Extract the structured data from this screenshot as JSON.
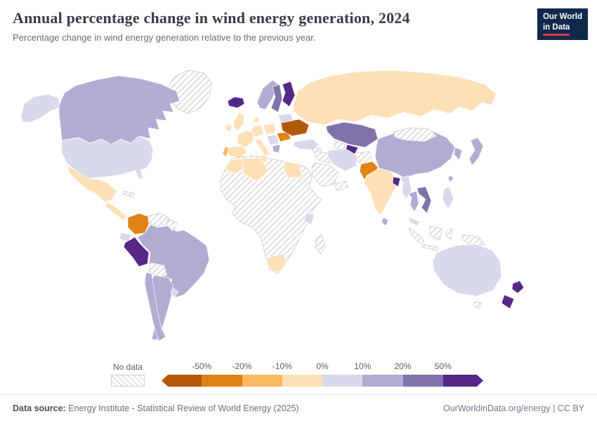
{
  "header": {
    "title": "Annual percentage change in wind energy generation, 2024",
    "subtitle": "Percentage change in wind energy generation relative to the previous year.",
    "logo": {
      "line1": "Our World",
      "line2": "in Data"
    }
  },
  "legend": {
    "no_data_label": "No data",
    "tick_labels": [
      "-50%",
      "-20%",
      "-10%",
      "0%",
      "10%",
      "20%",
      "50%"
    ],
    "bin_colors": [
      "#b35806",
      "#e08214",
      "#fdb863",
      "#fee0b6",
      "#d8daeb",
      "#b2abd2",
      "#8073ac",
      "#542788"
    ],
    "no_data_border": "#c9c9c9",
    "country_border": "#ffffff"
  },
  "footer": {
    "source_label": "Data source:",
    "source_text": " Energy Institute - Statistical Review of World Energy (2025)",
    "right_text": "OurWorldinData.org/energy | CC BY"
  },
  "map": {
    "country_bins": {
      "canada": 5,
      "alaska": 4,
      "usa": 4,
      "greenland": "nd",
      "iceland": 7,
      "mexico": 3,
      "central-america": 3,
      "cuba": "nd",
      "colombia": 1,
      "venezuela": "nd",
      "guianas": "nd",
      "ecuador": 4,
      "peru": 7,
      "brazil": 5,
      "bolivia": "nd",
      "paraguay": "nd",
      "argentina": 5,
      "chile": 5,
      "uruguay": 4,
      "russia": 3,
      "norway": 5,
      "sweden": 6,
      "finland": 7,
      "uk": 3,
      "ireland": 3,
      "denmark": 3,
      "germany": 3,
      "poland": 3,
      "france": 3,
      "spain": 3,
      "portugal": 2,
      "italy": 3,
      "balkans": 4,
      "greece": 5,
      "romania": 1,
      "ukraine": 0,
      "belarus": 4,
      "kazakhstan": 6,
      "turkmenistan": "nd",
      "uzbekistan": 7,
      "turkey": 4,
      "syria": "nd",
      "iraq": "nd",
      "iran": 4,
      "saudi-arabia": "nd",
      "yemen-oman": "nd",
      "afghanistan": "nd",
      "pakistan": 1,
      "china": 5,
      "mongolia": "nd",
      "india": 3,
      "bangladesh": 7,
      "myanmar": 4,
      "thailand": 5,
      "vietnam": 6,
      "malaysia": 4,
      "south-korea": 5,
      "japan": 5,
      "taiwan": 5,
      "philippines": 4,
      "sri-lanka": 5,
      "indonesia": "nd",
      "new-guinea": "nd",
      "africa": "nd",
      "morocco": 3,
      "algeria": 3,
      "tunisia": 3,
      "egypt": 3,
      "south-africa": 3,
      "kenya": 4,
      "madagascar": "nd",
      "australia": 4,
      "tasmania": "nd",
      "new-zealand": 7
    }
  },
  "chart_data": {
    "type": "choropleth",
    "title": "Annual percentage change in wind energy generation, 2024",
    "subtitle": "Percentage change in wind energy generation relative to the previous year.",
    "year": 2024,
    "unit": "%",
    "legend_position": "bottom",
    "legend_bins": [
      "< -50%",
      "-50% to -20%",
      "-20% to -10%",
      "-10% to 0%",
      "0% to 10%",
      "10% to 20%",
      "20% to 50%",
      "> 50%",
      "No data"
    ],
    "entities": {
      "Canada": "10% to 20%",
      "United States": "0% to 10%",
      "Greenland": "No data",
      "Iceland": "> 50%",
      "Mexico": "-10% to 0%",
      "Cuba": "No data",
      "Colombia": "-50% to -20%",
      "Venezuela": "No data",
      "Ecuador": "0% to 10%",
      "Peru": "> 50%",
      "Brazil": "10% to 20%",
      "Bolivia": "No data",
      "Chile": "10% to 20%",
      "Argentina": "10% to 20%",
      "Uruguay": "0% to 10%",
      "United Kingdom": "-10% to 0%",
      "Ireland": "-10% to 0%",
      "Norway": "10% to 20%",
      "Sweden": "20% to 50%",
      "Finland": "> 50%",
      "Denmark": "-10% to 0%",
      "France": "-10% to 0%",
      "Spain": "-10% to 0%",
      "Portugal": "-20% to -10%",
      "Germany": "-10% to 0%",
      "Poland": "-10% to 0%",
      "Italy": "-10% to 0%",
      "Greece": "10% to 20%",
      "Romania": "-50% to -20%",
      "Ukraine": "< -50%",
      "Belarus": "0% to 10%",
      "Russia": "-10% to 0%",
      "Kazakhstan": "20% to 50%",
      "Uzbekistan": "> 50%",
      "Turkmenistan": "No data",
      "Turkey": "0% to 10%",
      "Iran": "0% to 10%",
      "Iraq": "No data",
      "Saudi Arabia": "No data",
      "Afghanistan": "No data",
      "Pakistan": "-50% to -20%",
      "India": "-10% to 0%",
      "Bangladesh": "> 50%",
      "Myanmar": "0% to 10%",
      "Thailand": "10% to 20%",
      "Vietnam": "20% to 50%",
      "Malaysia": "0% to 10%",
      "Indonesia": "No data",
      "Mongolia": "No data",
      "China": "10% to 20%",
      "South Korea": "10% to 20%",
      "Japan": "10% to 20%",
      "Taiwan": "10% to 20%",
      "Philippines": "0% to 10%",
      "Sri Lanka": "10% to 20%",
      "Morocco": "-10% to 0%",
      "Algeria": "-10% to 0%",
      "Tunisia": "-10% to 0%",
      "Egypt": "-10% to 0%",
      "Kenya": "0% to 10%",
      "South Africa": "-10% to 0%",
      "Madagascar": "No data",
      "Australia": "0% to 10%",
      "New Zealand": "> 50%"
    }
  }
}
